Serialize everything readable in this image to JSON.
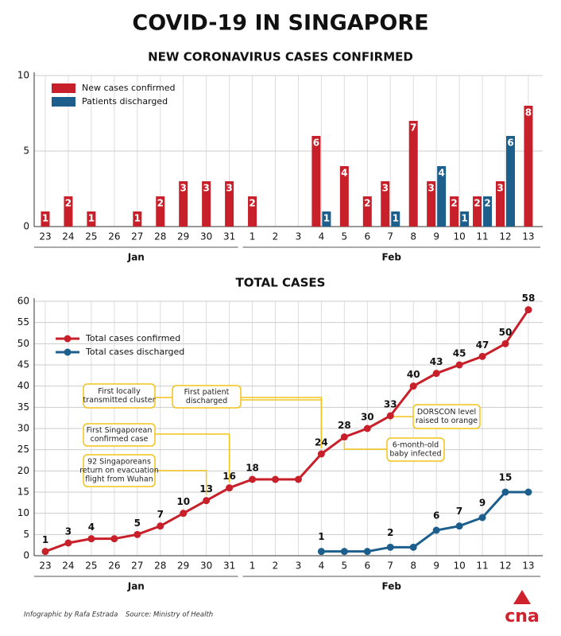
{
  "title": "COVID-19 IN SINGAPORE",
  "chart_data": [
    {
      "type": "bar",
      "title": "NEW CORONAVIRUS CASES CONFIRMED",
      "categories": [
        "23",
        "24",
        "25",
        "26",
        "27",
        "28",
        "29",
        "30",
        "31",
        "1",
        "2",
        "3",
        "4",
        "5",
        "6",
        "7",
        "8",
        "9",
        "10",
        "11",
        "12",
        "13"
      ],
      "groups": [
        "Jan",
        "Feb"
      ],
      "series": [
        {
          "name": "New cases confirmed",
          "color": "#c8202a",
          "values": [
            1,
            2,
            1,
            0,
            1,
            2,
            3,
            3,
            3,
            2,
            0,
            0,
            6,
            4,
            2,
            3,
            7,
            3,
            2,
            2,
            3,
            8
          ]
        },
        {
          "name": "Patients discharged",
          "color": "#1d5f8c",
          "values": [
            0,
            0,
            0,
            0,
            0,
            0,
            0,
            0,
            0,
            0,
            0,
            0,
            1,
            0,
            0,
            1,
            0,
            4,
            1,
            2,
            6,
            0
          ]
        }
      ],
      "ylim": [
        0,
        10
      ],
      "yticks": [
        0,
        5,
        10
      ],
      "grid": true,
      "legend": "top-left"
    },
    {
      "type": "line",
      "title": "TOTAL CASES",
      "categories": [
        "23",
        "24",
        "25",
        "26",
        "27",
        "28",
        "29",
        "30",
        "31",
        "1",
        "2",
        "3",
        "4",
        "5",
        "6",
        "7",
        "8",
        "9",
        "10",
        "11",
        "12",
        "13"
      ],
      "groups": [
        "Jan",
        "Feb"
      ],
      "series": [
        {
          "name": "Total cases confirmed",
          "color": "#c8202a",
          "values": [
            1,
            3,
            4,
            4,
            5,
            7,
            10,
            13,
            16,
            18,
            18,
            18,
            24,
            28,
            30,
            33,
            40,
            43,
            45,
            47,
            50,
            58
          ]
        },
        {
          "name": "Total cases discharged",
          "color": "#1d5f8c",
          "values": [
            null,
            null,
            null,
            null,
            null,
            null,
            null,
            null,
            null,
            null,
            null,
            null,
            1,
            1,
            1,
            2,
            2,
            6,
            7,
            9,
            15,
            15
          ]
        }
      ],
      "ylim": [
        0,
        60
      ],
      "yticks": [
        0,
        5,
        10,
        15,
        20,
        25,
        30,
        35,
        40,
        45,
        50,
        55,
        60
      ],
      "grid": true,
      "legend": "top-left",
      "annotations": [
        {
          "lines": [
            "First locally",
            "transmitted cluster"
          ]
        },
        {
          "lines": [
            "First patient",
            "discharged"
          ]
        },
        {
          "lines": [
            "First Singaporean",
            "confirmed case"
          ]
        },
        {
          "lines": [
            "92 Singaporeans",
            "return on evacuation",
            "flight from Wuhan"
          ]
        },
        {
          "lines": [
            "DORSCON level",
            "raised to orange"
          ]
        },
        {
          "lines": [
            "6-month-old",
            "baby infected"
          ]
        }
      ]
    }
  ],
  "footer": {
    "credit": "Infographic by Rafa Estrada",
    "source": "Source: Ministry of Health",
    "logo": "cna"
  }
}
